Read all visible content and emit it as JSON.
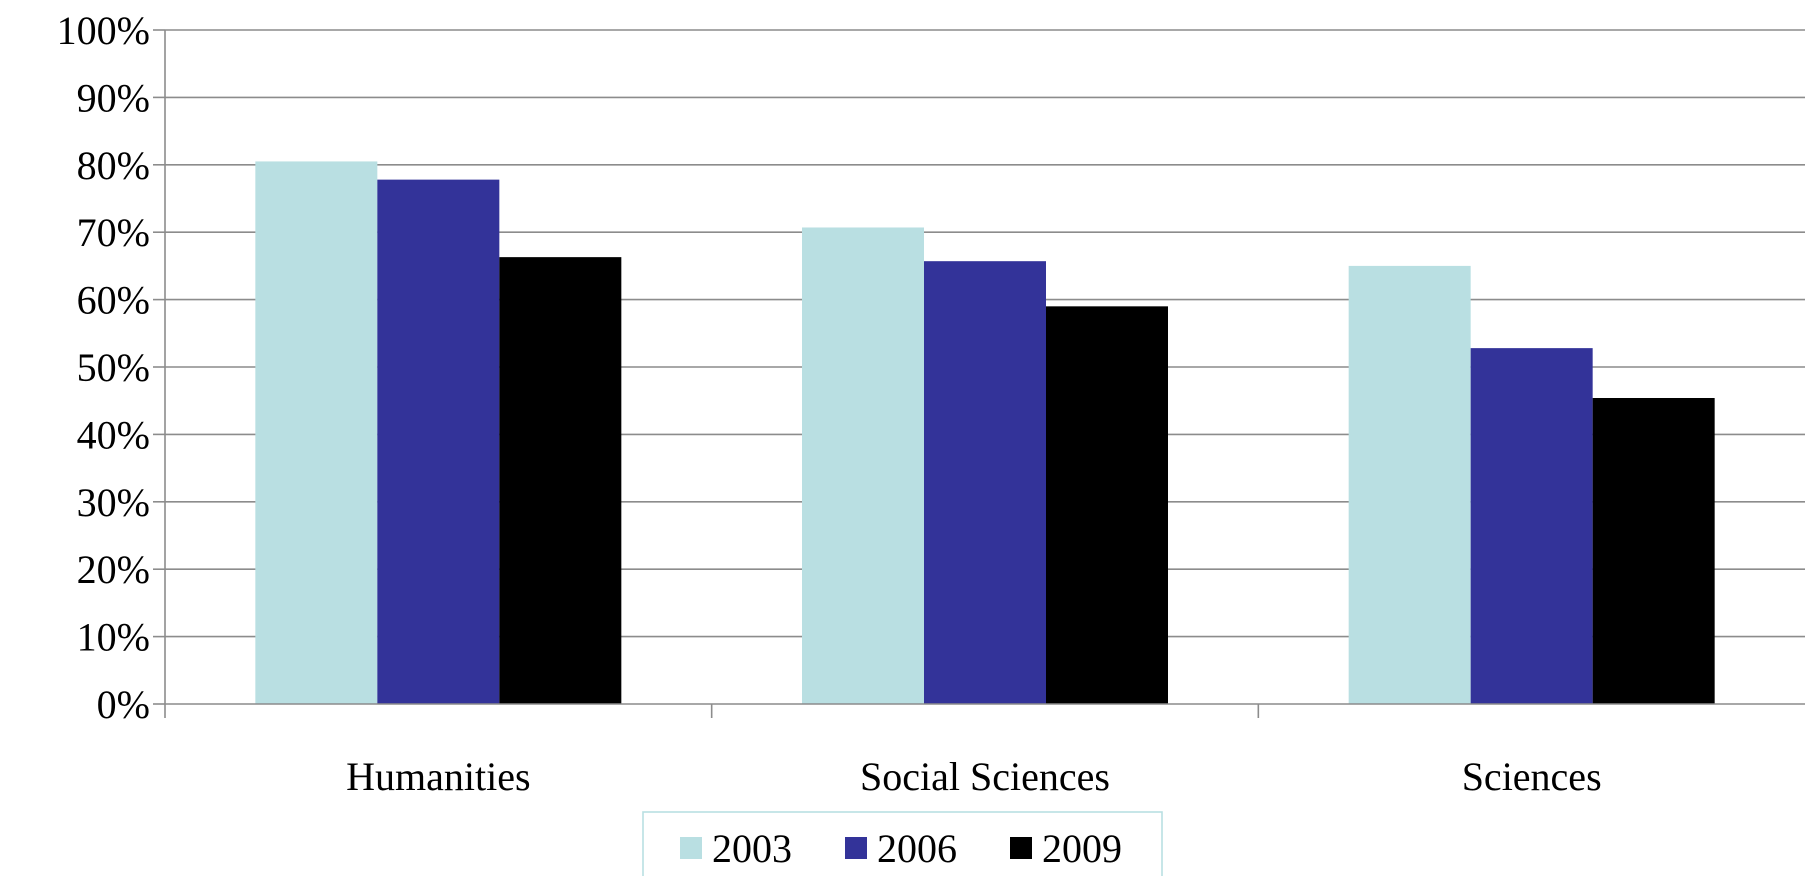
{
  "chart_data": {
    "type": "bar",
    "categories": [
      "Humanities",
      "Social Sciences",
      "Sciences"
    ],
    "series": [
      {
        "name": "2003",
        "color": "#b9dfe2",
        "values": [
          80.5,
          70.7,
          65.0
        ]
      },
      {
        "name": "2006",
        "color": "#333399",
        "values": [
          77.8,
          65.7,
          52.8
        ]
      },
      {
        "name": "2009",
        "color": "#000000",
        "values": [
          66.3,
          59.0,
          45.4
        ]
      }
    ],
    "y_ticks": [
      "0%",
      "10%",
      "20%",
      "30%",
      "40%",
      "50%",
      "60%",
      "70%",
      "80%",
      "90%",
      "100%"
    ],
    "ylim": [
      0,
      100
    ],
    "title": "",
    "xlabel": "",
    "ylabel": "",
    "grid": true,
    "legend_position": "bottom"
  }
}
